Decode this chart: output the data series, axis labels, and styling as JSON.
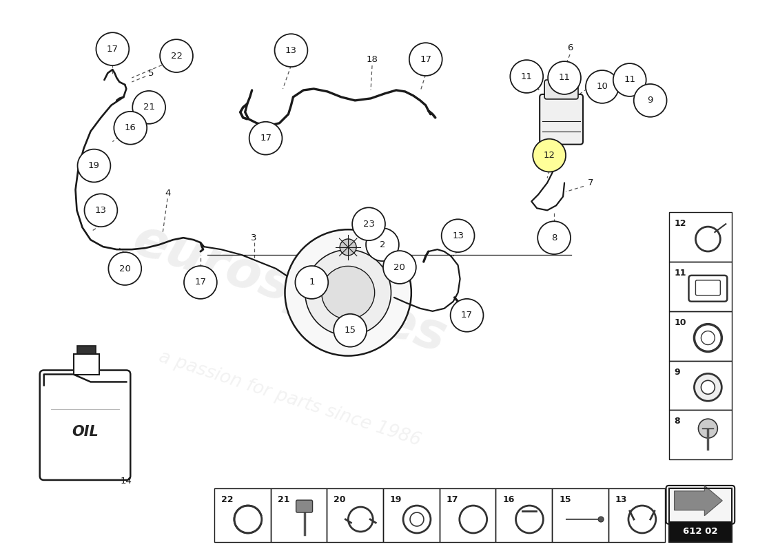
{
  "bg_color": "#ffffff",
  "line_color": "#1a1a1a",
  "watermark1": "eurospares",
  "watermark2": "a passion for parts since 1986",
  "bottom_box_code": "612 02",
  "separator_line": [
    [
      0.295,
      0.545
    ],
    [
      0.82,
      0.545
    ]
  ],
  "circle_r": 0.022,
  "tube_lw": 1.6,
  "label_fs": 9.5
}
